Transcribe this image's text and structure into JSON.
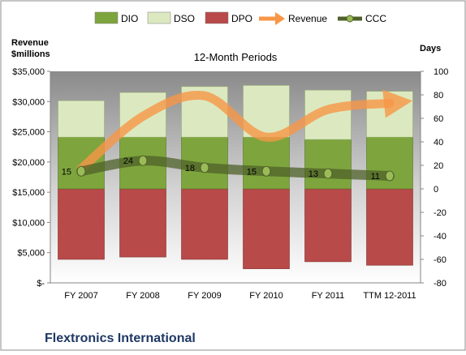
{
  "company_title": "Flextronics International",
  "chart_data": {
    "type": "bar",
    "title": "12-Month Periods",
    "ylabel_left": "Revenue\n$millions",
    "ylabel_right": "Days",
    "categories": [
      "FY 2007",
      "FY 2008",
      "FY 2009",
      "FY 2010",
      "FY 2011",
      "TTM 12-2011"
    ],
    "left_axis": {
      "min": 0,
      "max": 35000,
      "step": 5000,
      "tick_labels": [
        "$-",
        "$5,000",
        "$10,000",
        "$15,000",
        "$20,000",
        "$25,000",
        "$30,000",
        "$35,000"
      ]
    },
    "right_axis": {
      "min": -80,
      "max": 100,
      "step": 20,
      "tick_labels": [
        "-80",
        "-60",
        "-40",
        "-20",
        "0",
        "20",
        "40",
        "60",
        "80",
        "100"
      ]
    },
    "legend_placement": "top",
    "grid": false,
    "series": [
      {
        "name": "DIO",
        "type": "stacked-bar",
        "axis": "right",
        "color": "#7ea53d",
        "values": [
          44,
          44,
          44,
          44,
          42,
          44
        ]
      },
      {
        "name": "DSO",
        "type": "stacked-bar",
        "axis": "right",
        "color": "#dce9c0",
        "values": [
          31,
          38,
          43,
          44,
          42,
          39
        ]
      },
      {
        "name": "DPO",
        "type": "stacked-bar-negative",
        "axis": "right",
        "color": "#b84a49",
        "values": [
          60,
          58,
          60,
          68,
          62,
          65
        ]
      },
      {
        "name": "Revenue",
        "type": "line-arrow",
        "axis": "left",
        "color": "#f79646",
        "values": [
          18853,
          27558,
          30949,
          24110,
          28680,
          29730
        ]
      },
      {
        "name": "CCC",
        "type": "line-markers",
        "axis": "right",
        "color": "#4f6228",
        "values": [
          15,
          24,
          18,
          15,
          13,
          11
        ],
        "data_labels": [
          "15",
          "24",
          "18",
          "15",
          "13",
          "11"
        ]
      }
    ]
  }
}
